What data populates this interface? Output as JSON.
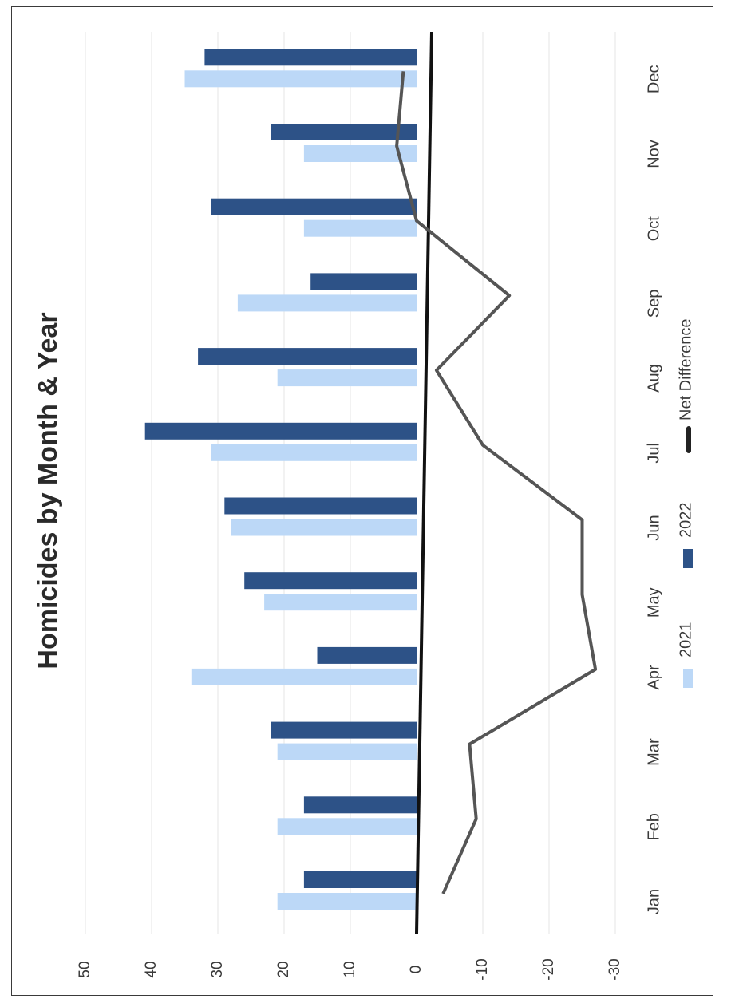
{
  "chart_data": {
    "type": "bar",
    "title": "Homicides by Month & Year",
    "categories": [
      "Jan",
      "Feb",
      "Mar",
      "Apr",
      "May",
      "Jun",
      "Jul",
      "Aug",
      "Sep",
      "Oct",
      "Nov",
      "Dec"
    ],
    "series": [
      {
        "name": "2021",
        "type": "bar",
        "color": "#bcd8f7",
        "values": [
          21,
          21,
          21,
          34,
          23,
          28,
          31,
          21,
          27,
          17,
          17,
          35
        ]
      },
      {
        "name": "2022",
        "type": "bar",
        "color": "#2d5287",
        "values": [
          17,
          17,
          22,
          15,
          26,
          29,
          41,
          33,
          16,
          31,
          22,
          32
        ]
      },
      {
        "name": "Net Difference",
        "type": "line",
        "color": "#555555",
        "values": [
          -4,
          -9,
          -8,
          -27,
          -25,
          -25,
          -10,
          -3,
          -14,
          0,
          3,
          2
        ]
      }
    ],
    "yticks": [
      50,
      40,
      30,
      20,
      10,
      0,
      -10,
      -20,
      -30
    ],
    "ylim": [
      -30,
      50
    ],
    "grid": true,
    "legend_position": "bottom",
    "orientation": "rotated-90-clockwise"
  }
}
